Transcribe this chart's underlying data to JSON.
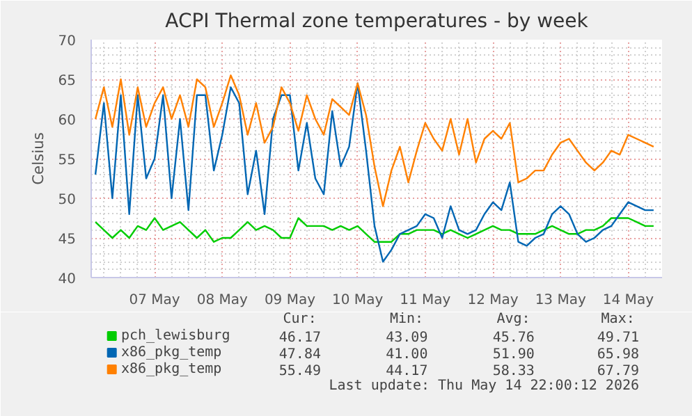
{
  "chart_data": {
    "type": "line",
    "title": "ACPI Thermal zone temperatures - by week",
    "ylabel": "Celsius",
    "x": [
      "2026-05-06T15:00",
      "2026-05-06T18:00",
      "2026-05-06T21:00",
      "2026-05-07T00:00",
      "2026-05-07T03:00",
      "2026-05-07T06:00",
      "2026-05-07T09:00",
      "2026-05-07T12:00",
      "2026-05-07T15:00",
      "2026-05-07T18:00",
      "2026-05-07T21:00",
      "2026-05-08T00:00",
      "2026-05-08T03:00",
      "2026-05-08T06:00",
      "2026-05-08T09:00",
      "2026-05-08T12:00",
      "2026-05-08T15:00",
      "2026-05-08T18:00",
      "2026-05-08T21:00",
      "2026-05-09T00:00",
      "2026-05-09T03:00",
      "2026-05-09T06:00",
      "2026-05-09T09:00",
      "2026-05-09T12:00",
      "2026-05-09T15:00",
      "2026-05-09T18:00",
      "2026-05-09T21:00",
      "2026-05-10T00:00",
      "2026-05-10T03:00",
      "2026-05-10T06:00",
      "2026-05-10T09:00",
      "2026-05-10T12:00",
      "2026-05-10T15:00",
      "2026-05-10T18:00",
      "2026-05-10T21:00",
      "2026-05-11T00:00",
      "2026-05-11T03:00",
      "2026-05-11T06:00",
      "2026-05-11T09:00",
      "2026-05-11T12:00",
      "2026-05-11T15:00",
      "2026-05-11T18:00",
      "2026-05-11T21:00",
      "2026-05-12T00:00",
      "2026-05-12T03:00",
      "2026-05-12T06:00",
      "2026-05-12T09:00",
      "2026-05-12T12:00",
      "2026-05-12T15:00",
      "2026-05-12T18:00",
      "2026-05-12T21:00",
      "2026-05-13T00:00",
      "2026-05-13T03:00",
      "2026-05-13T06:00",
      "2026-05-13T09:00",
      "2026-05-13T12:00",
      "2026-05-13T15:00",
      "2026-05-13T18:00",
      "2026-05-13T21:00",
      "2026-05-14T00:00",
      "2026-05-14T03:00",
      "2026-05-14T06:00",
      "2026-05-14T09:00",
      "2026-05-14T12:00",
      "2026-05-14T15:00",
      "2026-05-14T18:00",
      "2026-05-14T21:00"
    ],
    "series": [
      {
        "name": "pch_lewisburg",
        "color": "#00cc00",
        "values": [
          47,
          46,
          45,
          46,
          45,
          46.5,
          46,
          47.5,
          46,
          46.5,
          47,
          46,
          45,
          46,
          44.5,
          45,
          45,
          46,
          47,
          46,
          46.5,
          46,
          45,
          45,
          47.5,
          46.5,
          46.5,
          46.5,
          46,
          46.5,
          46,
          46.5,
          45.5,
          44.5,
          44.5,
          44.5,
          45.5,
          45.5,
          46,
          46,
          46,
          45.5,
          46,
          45.5,
          45,
          45.5,
          46,
          46.5,
          46,
          46,
          45.5,
          45.5,
          45.5,
          46,
          46.5,
          46,
          45.5,
          45.5,
          46,
          46,
          46.5,
          47.5,
          47.5,
          47.5,
          47,
          46.5,
          46.5
        ]
      },
      {
        "name": "x86_pkg_temp",
        "color": "#0066b3",
        "values": [
          53,
          62,
          50,
          63,
          48,
          63,
          52.5,
          55,
          63,
          50,
          60,
          48.5,
          63,
          63,
          53.5,
          58,
          64,
          62,
          50.5,
          56,
          48,
          60,
          63,
          63,
          53.5,
          59.5,
          52.5,
          50.5,
          61,
          54,
          56.5,
          64.5,
          56,
          46.5,
          42,
          43.5,
          45.5,
          46,
          46.5,
          48,
          47.5,
          45,
          49,
          46,
          45.5,
          46,
          48,
          49.5,
          48.5,
          52,
          44.5,
          44,
          45,
          45.5,
          48,
          49,
          48,
          45.5,
          44.5,
          45,
          46,
          46.5,
          48,
          49.5,
          49,
          48.5,
          48.5
        ]
      },
      {
        "name": "x86_pkg_temp",
        "color": "#ff8000",
        "values": [
          60,
          64,
          59,
          65,
          58,
          64,
          59,
          62,
          64,
          60,
          63,
          59,
          65,
          64,
          59,
          62,
          65.5,
          63,
          58,
          62,
          57,
          59,
          64,
          62,
          58.5,
          63,
          60,
          58,
          62.5,
          61.5,
          60.5,
          64.5,
          60.5,
          54,
          49,
          53.5,
          56.5,
          52,
          56,
          59.5,
          57.5,
          56,
          60,
          55.5,
          60,
          54.5,
          57.5,
          58.5,
          57.5,
          59.5,
          52,
          52.5,
          53.5,
          53.5,
          55.5,
          57,
          57.5,
          56,
          54.5,
          53.5,
          54.5,
          56,
          55.5,
          58,
          57.5,
          57,
          56.5
        ]
      }
    ],
    "xlim": [
      "2026-05-06T13:30",
      "2026-05-15T00:00"
    ],
    "xticks": [
      {
        "value": "2026-05-07T12:00",
        "label": "07 May"
      },
      {
        "value": "2026-05-08T12:00",
        "label": "08 May"
      },
      {
        "value": "2026-05-09T12:00",
        "label": "09 May"
      },
      {
        "value": "2026-05-10T12:00",
        "label": "10 May"
      },
      {
        "value": "2026-05-11T12:00",
        "label": "11 May"
      },
      {
        "value": "2026-05-12T12:00",
        "label": "12 May"
      },
      {
        "value": "2026-05-13T12:00",
        "label": "13 May"
      },
      {
        "value": "2026-05-14T12:00",
        "label": "14 May"
      }
    ],
    "ylim": [
      40,
      70
    ],
    "yticks": [
      40,
      45,
      50,
      55,
      60,
      65,
      70
    ],
    "grid": true,
    "legend": "bottom",
    "annotations": [
      "Cur:",
      "Min:",
      "Avg:",
      "Max:",
      "46.17",
      "43.09",
      "45.76",
      "49.71",
      "47.84",
      "41.00",
      "51.90",
      "65.98",
      "55.49",
      "44.17",
      "58.33",
      "67.79",
      "Last update: Thu May 14 22:00:12 2026"
    ]
  }
}
